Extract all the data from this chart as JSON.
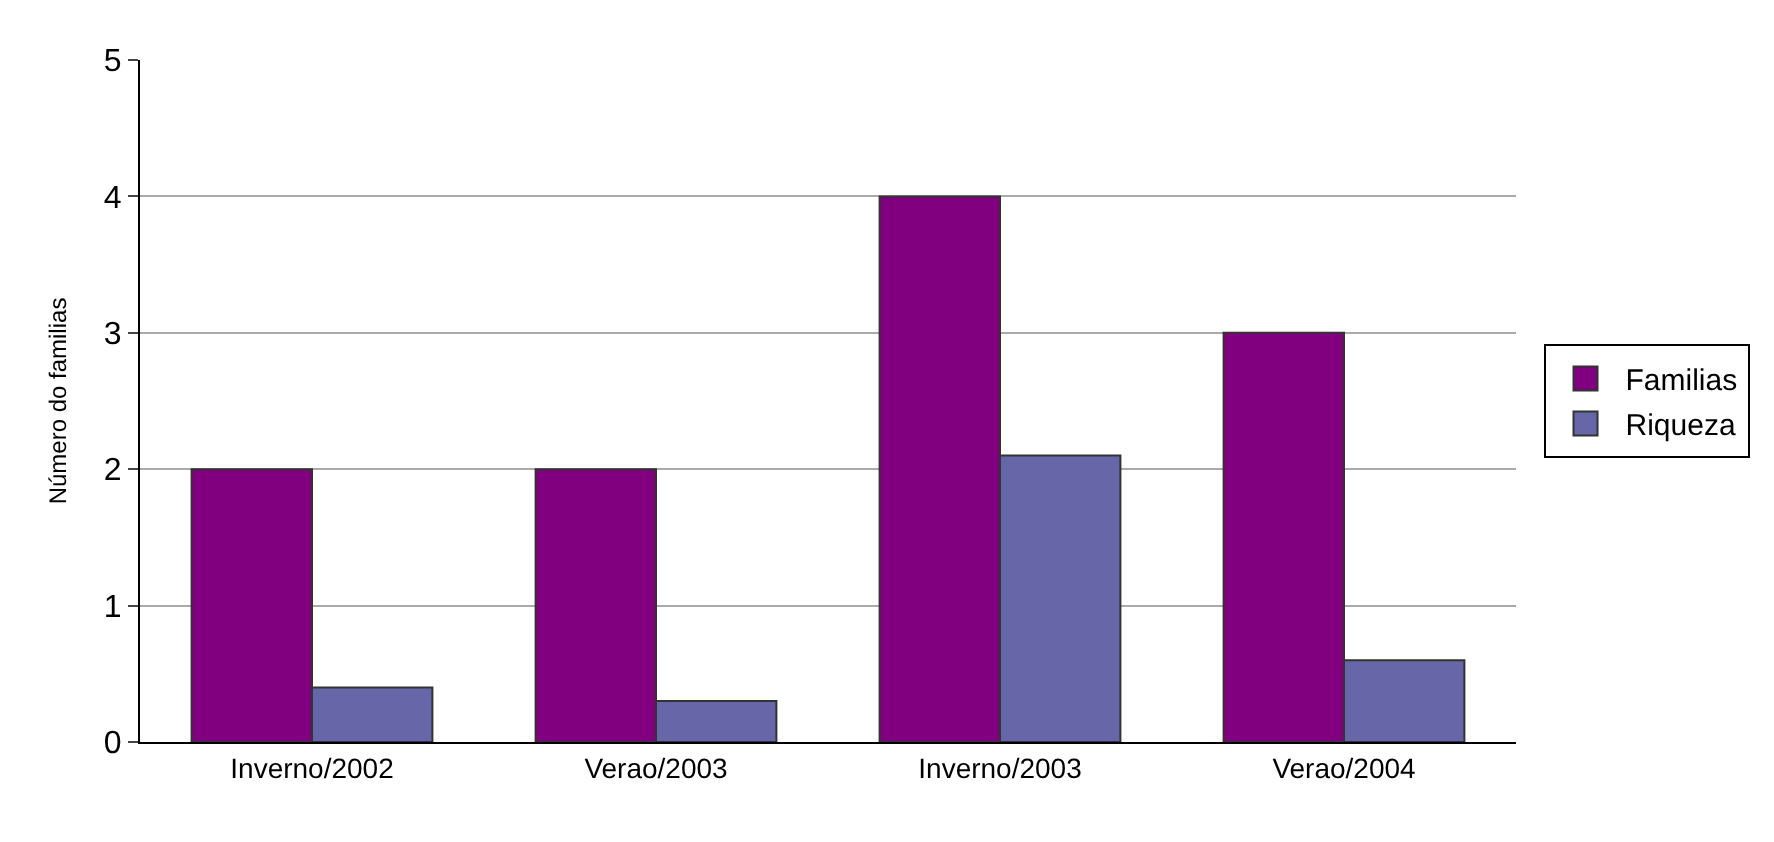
{
  "chart_data": {
    "type": "bar",
    "ylabel": "Número do familias",
    "categories": [
      "Inverno/2002",
      "Verao/2003",
      "Inverno/2003",
      "Verao/2004"
    ],
    "series": [
      {
        "name": "Familias",
        "color": "#800080",
        "values": [
          2,
          2,
          4,
          3
        ]
      },
      {
        "name": "Riqueza",
        "color": "#6666a8",
        "values": [
          0.4,
          0.3,
          2.1,
          0.6
        ]
      }
    ],
    "ylim": [
      0,
      5
    ],
    "yticks": [
      0,
      1,
      2,
      3,
      4,
      5
    ],
    "grid": "y",
    "legend": "right"
  }
}
